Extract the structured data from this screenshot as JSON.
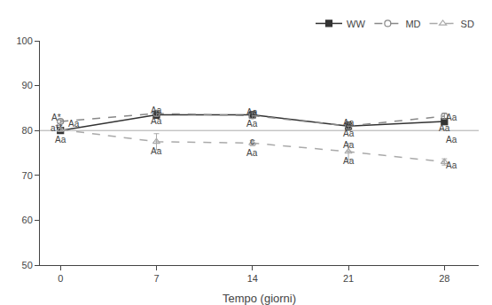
{
  "chart_data": {
    "type": "line",
    "xlabel": "Tempo (giorni)",
    "x": [
      0,
      7,
      14,
      21,
      28
    ],
    "series": [
      {
        "name": "WW",
        "color": "#333333",
        "marker": "square",
        "line_style": "solid",
        "values": [
          80.0,
          83.5,
          83.5,
          81.0,
          82.0
        ],
        "errors": [
          0.5,
          0.8,
          0.7,
          0.9,
          0.7
        ]
      },
      {
        "name": "MD",
        "color": "#888888",
        "marker": "circle-open",
        "line_style": "dash",
        "values": [
          82.0,
          83.8,
          83.3,
          81.0,
          83.2
        ],
        "errors": [
          0.4,
          0.6,
          0.6,
          0.7,
          0.6
        ]
      },
      {
        "name": "SD",
        "color": "#aaaaaa",
        "marker": "triangle-up-open",
        "line_style": "dash",
        "values": [
          80.2,
          77.5,
          77.2,
          75.3,
          73.0
        ],
        "errors": [
          0.4,
          1.8,
          0.6,
          1.8,
          0.7
        ]
      }
    ],
    "reference_line": {
      "y": 80.0,
      "color": "#aaaaaa"
    },
    "xlim": [
      -1.5,
      30.5
    ],
    "ylim": [
      50,
      100
    ],
    "xticks": [
      0,
      7,
      14,
      21,
      28
    ],
    "yticks": [
      50,
      60,
      70,
      80,
      90,
      100
    ],
    "grid": false,
    "legend": "upper right",
    "annotations": [
      {
        "text": "Aa",
        "x": 0,
        "y": 79.4
      },
      {
        "text": "Aa",
        "x": 7,
        "y": 82.5
      },
      {
        "text": "Aa",
        "x": 14,
        "y": 82.5
      },
      {
        "text": "Aa",
        "x": 21,
        "y": 80.2
      },
      {
        "text": "Aa",
        "x": 28,
        "y": 81.0
      },
      {
        "text": "A*",
        "x": -0.3,
        "y": 83.0
      },
      {
        "text": "a**",
        "x": -0.3,
        "y": 82.2
      },
      {
        "text": "Aa",
        "x": 1.0,
        "y": 81.5
      },
      {
        "text": "Aa",
        "x": 7,
        "y": 84.5
      },
      {
        "text": "Aa",
        "x": 14,
        "y": 84.0
      },
      {
        "text": "c",
        "x": 14,
        "y": 77.5
      },
      {
        "text": "Aa",
        "x": 21,
        "y": 81.8
      },
      {
        "text": "Aa",
        "x": 28.5,
        "y": 83.0
      },
      {
        "text": "Aa",
        "x": 7,
        "y": 75.4
      },
      {
        "text": "Aa",
        "x": 14,
        "y": 76.4
      },
      {
        "text": "Aa",
        "x": 21,
        "y": 79.2
      },
      {
        "text": "Aa",
        "x": 21,
        "y": 73.3
      },
      {
        "text": "Aa",
        "x": 28.5,
        "y": 80.0
      },
      {
        "text": "Aa",
        "x": 28.5,
        "y": 72.3
      }
    ]
  }
}
